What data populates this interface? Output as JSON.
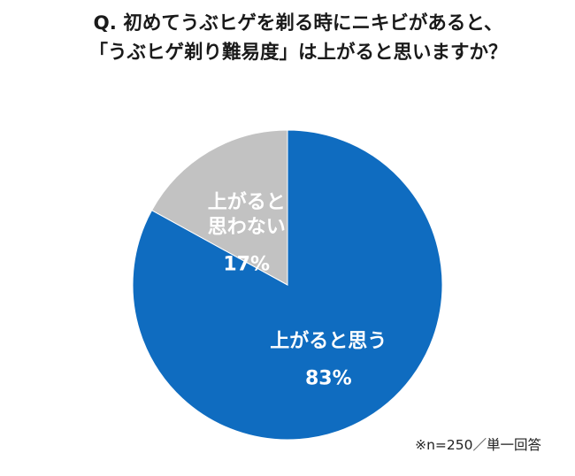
{
  "chart_data": {
    "type": "pie",
    "title": "Q. 初めてうぶヒゲを剃る時にニキビがあると、",
    "subtitle": "「うぶヒゲ剃り難易度」は上がると思いますか？",
    "slices": [
      {
        "label_lines": [
          "上がると思う"
        ],
        "value": 83,
        "value_label": "83%",
        "color": "#0f6cc0"
      },
      {
        "label_lines": [
          "上がると",
          "思わない"
        ],
        "value": 17,
        "value_label": "17%",
        "color": "#c2c2c2"
      }
    ],
    "start_angle_deg": 0,
    "direction": "clockwise",
    "note": "※n=250／単一回答"
  }
}
